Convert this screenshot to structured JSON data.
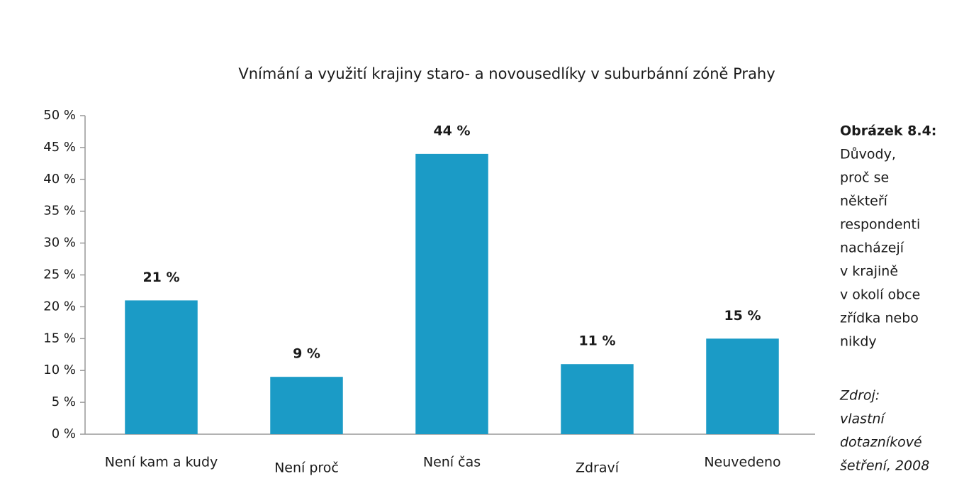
{
  "chart_data": {
    "type": "bar",
    "title": "Vnímání a využití krajiny staro- a novousedlíky v suburbánní zóně Prahy",
    "categories": [
      "Není kam a kudy",
      "Není proč",
      "Není čas",
      "Zdraví",
      "Neuvedeno"
    ],
    "values": [
      21,
      9,
      44,
      11,
      15
    ],
    "value_labels": [
      "21 %",
      "9 %",
      "44 %",
      "11 %",
      "15 %"
    ],
    "color": "#1b9bc6",
    "ylim": [
      0,
      50
    ],
    "yticks": [
      {
        "value": 0,
        "label": "0 %"
      },
      {
        "value": 5,
        "label": "5 %"
      },
      {
        "value": 10,
        "label": "10 %"
      },
      {
        "value": 15,
        "label": "15 %"
      },
      {
        "value": 20,
        "label": "20 %"
      },
      {
        "value": 25,
        "label": "25 %"
      },
      {
        "value": 30,
        "label": "30 %"
      },
      {
        "value": 35,
        "label": "35 %"
      },
      {
        "value": 40,
        "label": "40 %"
      },
      {
        "value": 45,
        "label": "45 %"
      },
      {
        "value": 50,
        "label": "50 %"
      }
    ],
    "grid": false
  },
  "caption": {
    "label": "Obrázek 8.4:",
    "lines": [
      "Důvody,",
      "proč se",
      "někteří",
      "respondenti",
      "nacházejí",
      "v krajině",
      "v okolí obce",
      "zřídka nebo",
      "nikdy"
    ],
    "source": [
      "Zdroj:",
      "vlastní",
      "dotazníkové",
      "šetření, 2008"
    ]
  }
}
